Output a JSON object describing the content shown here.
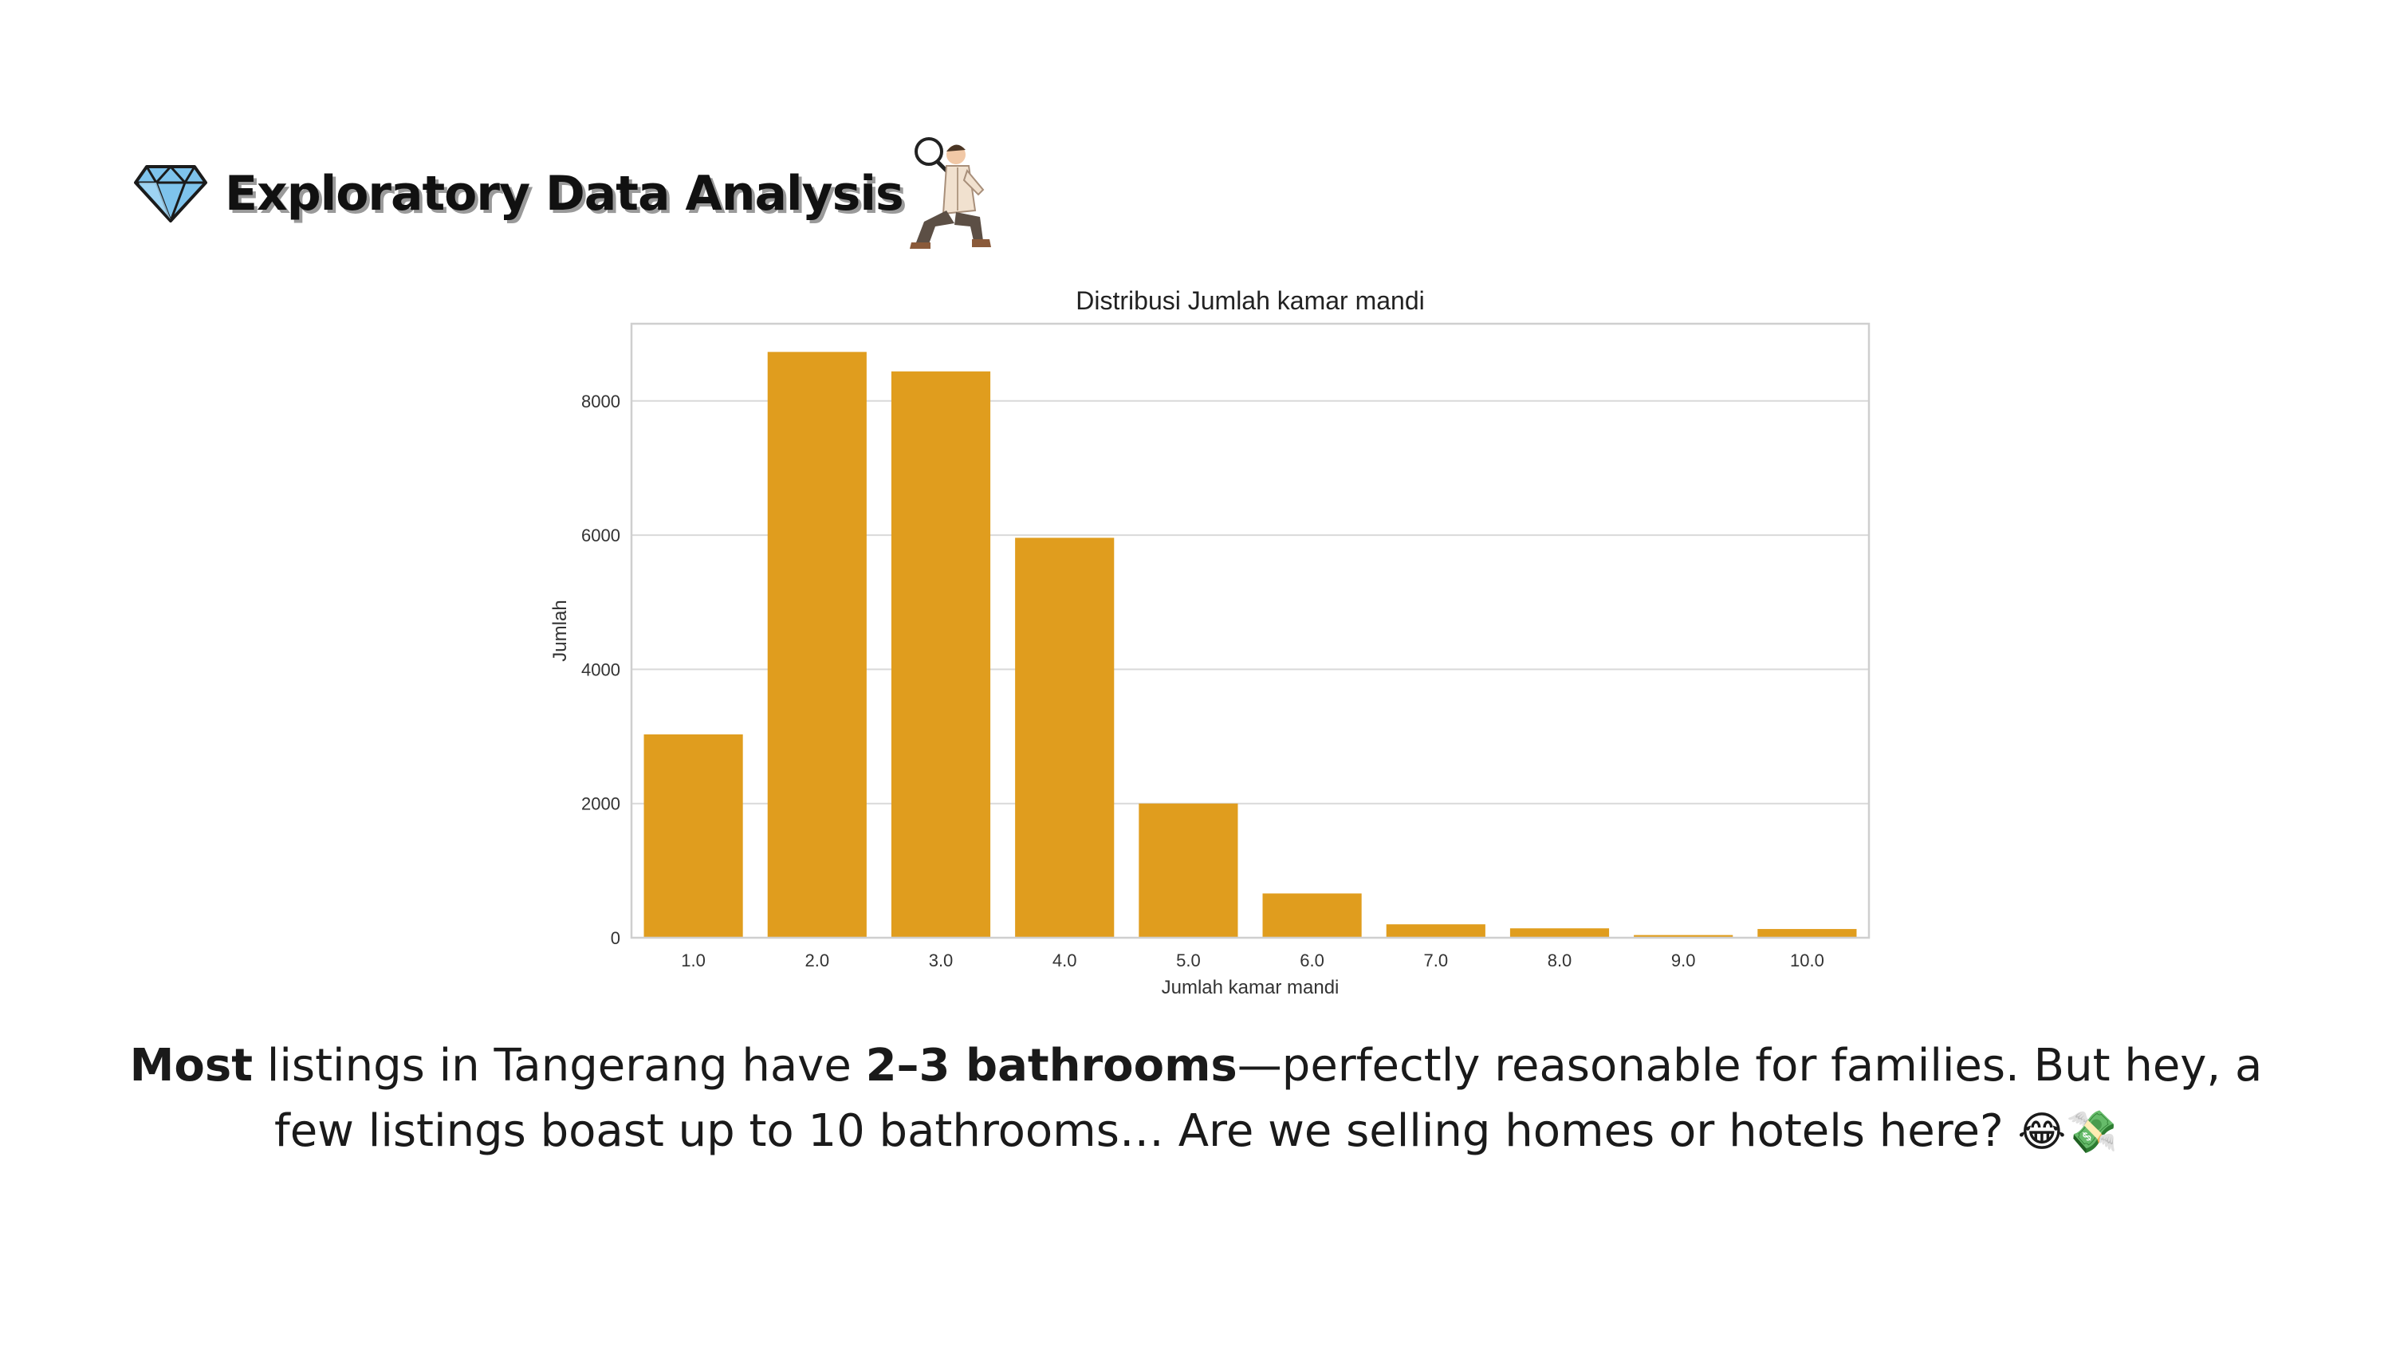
{
  "header": {
    "title": "Exploratory Data Analysis"
  },
  "colors": {
    "bar": "#E09D1E",
    "grid": "#d9d9d9",
    "axis_text": "#333333",
    "title_text": "#222222"
  },
  "icons": {
    "left": "diamond-icon",
    "right": "detective-icon"
  },
  "chart_data": {
    "type": "bar",
    "title": "Distribusi Jumlah kamar mandi",
    "xlabel": "Jumlah kamar mandi",
    "ylabel": "Jumlah",
    "categories": [
      "1.0",
      "2.0",
      "3.0",
      "4.0",
      "5.0",
      "6.0",
      "7.0",
      "8.0",
      "9.0",
      "10.0"
    ],
    "values": [
      3030,
      8730,
      8440,
      5960,
      2000,
      660,
      200,
      140,
      40,
      130
    ],
    "yticks": [
      0,
      2000,
      4000,
      6000,
      8000
    ],
    "ylim": [
      0,
      9150
    ],
    "grid": "on"
  },
  "caption": {
    "part1_bold": "Most",
    "part2": " listings in Tangerang have ",
    "part3_bold": "2–3 bathrooms",
    "part4": "—perfectly reasonable for families. But hey, a few listings boast up to 10 bathrooms… Are we selling homes or hotels here? ",
    "emoji": "😂💸"
  }
}
